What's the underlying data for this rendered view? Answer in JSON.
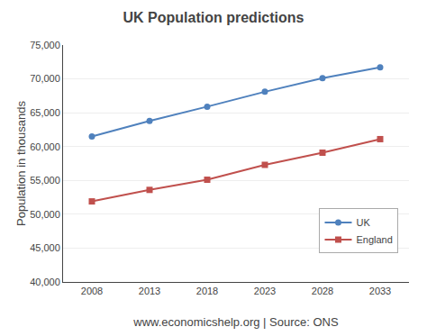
{
  "chart_data": {
    "type": "line",
    "title": "UK Population predictions",
    "xlabel": "www.economicshelp.org | Source: ONS",
    "ylabel": "Population in thousands",
    "x": [
      2008,
      2013,
      2018,
      2023,
      2028,
      2033
    ],
    "series": [
      {
        "name": "UK",
        "color": "#4F81BD",
        "marker": "circle",
        "values": [
          61500,
          63800,
          65900,
          68100,
          70100,
          71700
        ]
      },
      {
        "name": "England",
        "color": "#C0504D",
        "marker": "square",
        "values": [
          51900,
          53600,
          55100,
          57300,
          59100,
          61100
        ]
      }
    ],
    "xlim": [
      2005.5,
      2035.5
    ],
    "xticks": [
      2008,
      2013,
      2018,
      2023,
      2028,
      2033
    ],
    "ylim": [
      40000,
      75000
    ],
    "yticks": [
      {
        "value": 40000,
        "label": "40,000"
      },
      {
        "value": 45000,
        "label": "45,000"
      },
      {
        "value": 50000,
        "label": "50,000"
      },
      {
        "value": 55000,
        "label": "55,000"
      },
      {
        "value": 60000,
        "label": "60,000"
      },
      {
        "value": 65000,
        "label": "65,000"
      },
      {
        "value": 70000,
        "label": "70,000"
      },
      {
        "value": 75000,
        "label": "75,000"
      }
    ],
    "grid": "y",
    "legend": "lower right"
  }
}
